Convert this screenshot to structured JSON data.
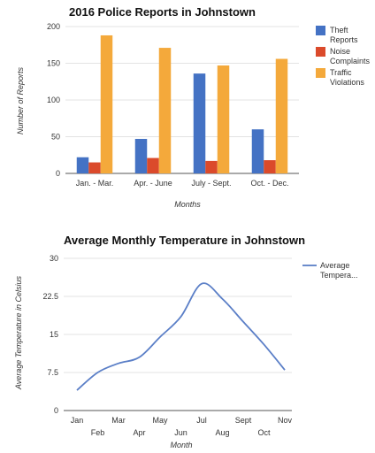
{
  "chart_data": [
    {
      "type": "bar",
      "title": "2016 Police Reports in Johnstown",
      "xlabel": "Months",
      "ylabel": "Number of Reports",
      "ylim": [
        0,
        200
      ],
      "yticks": [
        0,
        50,
        100,
        150,
        200
      ],
      "grid": true,
      "legend_position": "right",
      "categories": [
        "Jan. - Mar.",
        "Apr. - June",
        "July - Sept.",
        "Oct. - Dec."
      ],
      "series": [
        {
          "name": "Theft Reports",
          "legend_lines": [
            "Theft",
            "Reports"
          ],
          "color": "#4472c4",
          "values": [
            22,
            47,
            136,
            60
          ]
        },
        {
          "name": "Noise Complaints",
          "legend_lines": [
            "Noise",
            "Complaints"
          ],
          "color": "#db4a2b",
          "values": [
            15,
            21,
            17,
            18
          ]
        },
        {
          "name": "Traffic Violations",
          "legend_lines": [
            "Traffic",
            "Violations"
          ],
          "color": "#f4a93b",
          "values": [
            188,
            171,
            147,
            156
          ]
        }
      ]
    },
    {
      "type": "line",
      "title": "Average Monthly Temperature in Johnstown",
      "xlabel": "Month",
      "ylabel": "Average Temperature in Celsius",
      "ylim": [
        0,
        30
      ],
      "yticks": [
        "0",
        "7.5",
        "15",
        "22.5",
        "30"
      ],
      "grid": true,
      "legend_position": "right",
      "categories": [
        "Jan",
        "Feb",
        "Mar",
        "Apr",
        "May",
        "Jun",
        "Jul",
        "Aug",
        "Sept",
        "Oct",
        "Nov"
      ],
      "series": [
        {
          "name": "Average Tempera...",
          "legend_lines": [
            "Average",
            "Tempera..."
          ],
          "color": "#5b7fc7",
          "values": [
            4,
            7.5,
            9.3,
            10.5,
            14.5,
            18.5,
            25,
            22,
            17.5,
            13,
            8
          ]
        }
      ]
    }
  ]
}
